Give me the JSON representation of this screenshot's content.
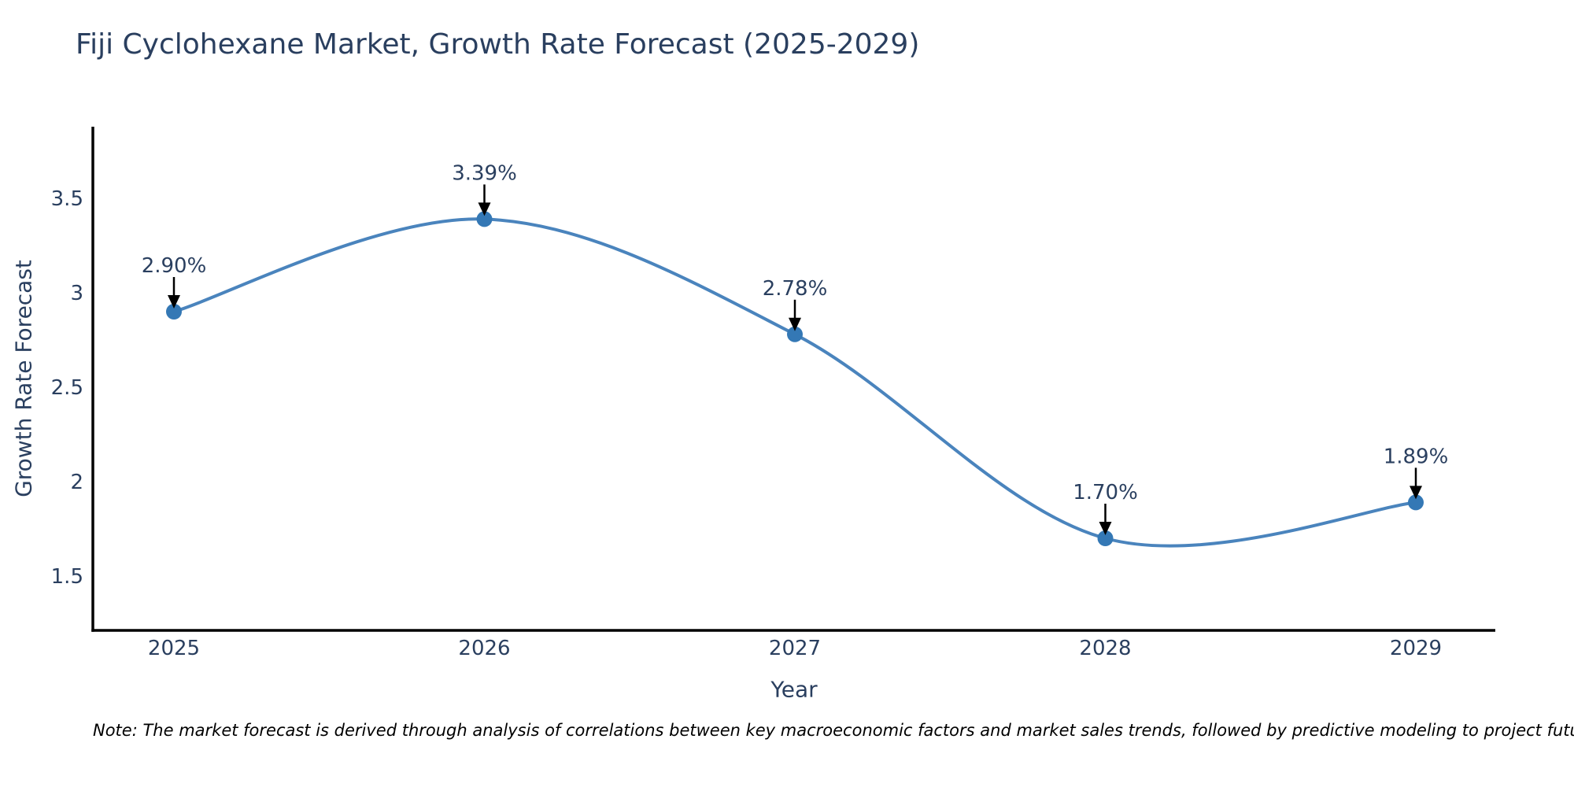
{
  "page": {
    "note": "Note: The market forecast is derived through analysis of correlations between key macroeconomic factors and market sales trends, followed by predictive modeling to project future sales"
  },
  "chart_data": {
    "type": "line",
    "title": "Fiji Cyclohexane Market, Growth Rate Forecast (2025-2029)",
    "xlabel": "Year",
    "ylabel": "Growth Rate Forecast",
    "categories": [
      "2025",
      "2026",
      "2027",
      "2028",
      "2029"
    ],
    "series": [
      {
        "name": "Growth Rate Forecast",
        "values": [
          2.9,
          3.39,
          2.78,
          1.7,
          1.89
        ],
        "point_labels": [
          "2.90%",
          "3.39%",
          "2.78%",
          "1.70%",
          "1.89%"
        ]
      }
    ],
    "yticks": [
      "1.5",
      "2",
      "2.5",
      "3",
      "3.5"
    ],
    "ytick_values": [
      1.5,
      2,
      2.5,
      3,
      3.5
    ],
    "ylim": [
      1.2125,
      3.8792
    ],
    "line_shape": "spline",
    "grid": false,
    "legend_position": "none",
    "annotations_have_arrows": true,
    "colors": {
      "line": "#4a84bd",
      "marker": "#3478b5",
      "axis": "#000000",
      "arrow": "#000000",
      "text": "#2a3f5f",
      "note": "#000000"
    }
  }
}
